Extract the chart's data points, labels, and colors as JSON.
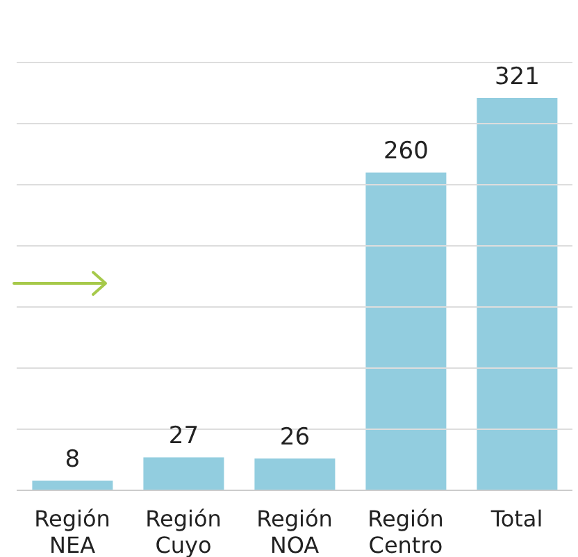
{
  "chart_data": {
    "type": "bar",
    "categories": [
      "Región NEA",
      "Región Cuyo",
      "Región NOA",
      "Región Centro",
      "Total"
    ],
    "values": [
      8,
      27,
      26,
      260,
      321
    ],
    "color": "#92cddf",
    "ylim": [
      0,
      350
    ],
    "yticks": [
      {
        "value": 0,
        "label": null
      },
      {
        "value": 50,
        "label": null
      },
      {
        "value": 100,
        "label": null
      },
      {
        "value": 150,
        "label": null
      },
      {
        "value": 200,
        "label": null
      },
      {
        "value": 250,
        "label": null
      },
      {
        "value": 300,
        "label": null
      },
      {
        "value": 350,
        "label": null
      }
    ],
    "grid": "y",
    "data_labels": true
  }
}
